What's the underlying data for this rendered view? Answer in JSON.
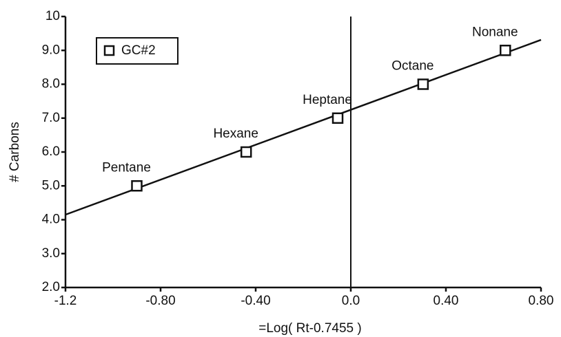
{
  "chart_data": {
    "type": "scatter",
    "xlabel": "=Log( Rt-0.7455 )",
    "ylabel": "# Carbons",
    "xlim": [
      -1.2,
      0.8
    ],
    "xticks": [
      -1.2,
      {
        "value": -0.8,
        "label": "-0.80"
      },
      {
        "value": -0.4,
        "label": "-0.40"
      },
      {
        "value": 0,
        "label": "0.0"
      },
      {
        "value": 0.4,
        "label": "0.40"
      },
      {
        "value": 0.8,
        "label": "0.80"
      }
    ],
    "ylim": [
      2,
      10
    ],
    "yticks": [
      {
        "value": 2,
        "label": "2.0"
      },
      {
        "value": 3,
        "label": "3.0"
      },
      {
        "value": 4,
        "label": "4.0"
      },
      {
        "value": 5,
        "label": "5.0"
      },
      {
        "value": 6,
        "label": "6.0"
      },
      {
        "value": 7,
        "label": "7.0"
      },
      {
        "value": 8,
        "label": "8.0"
      },
      {
        "value": 9,
        "label": "9.0"
      },
      10
    ],
    "series": [
      {
        "name": "GC#2",
        "color": "#111111",
        "x": [
          -0.9,
          -0.44,
          -0.055,
          0.304,
          0.65
        ],
        "values": [
          5,
          6,
          7,
          8,
          9
        ],
        "point_labels": [
          "Pentane",
          "Hexane",
          "Heptane",
          "Octane",
          "Nonane"
        ]
      }
    ],
    "fit_line": {
      "x": [
        -1.2,
        0.8
      ],
      "values": [
        4.15,
        9.31
      ]
    },
    "vline_x": 0,
    "legend": "upper left"
  }
}
